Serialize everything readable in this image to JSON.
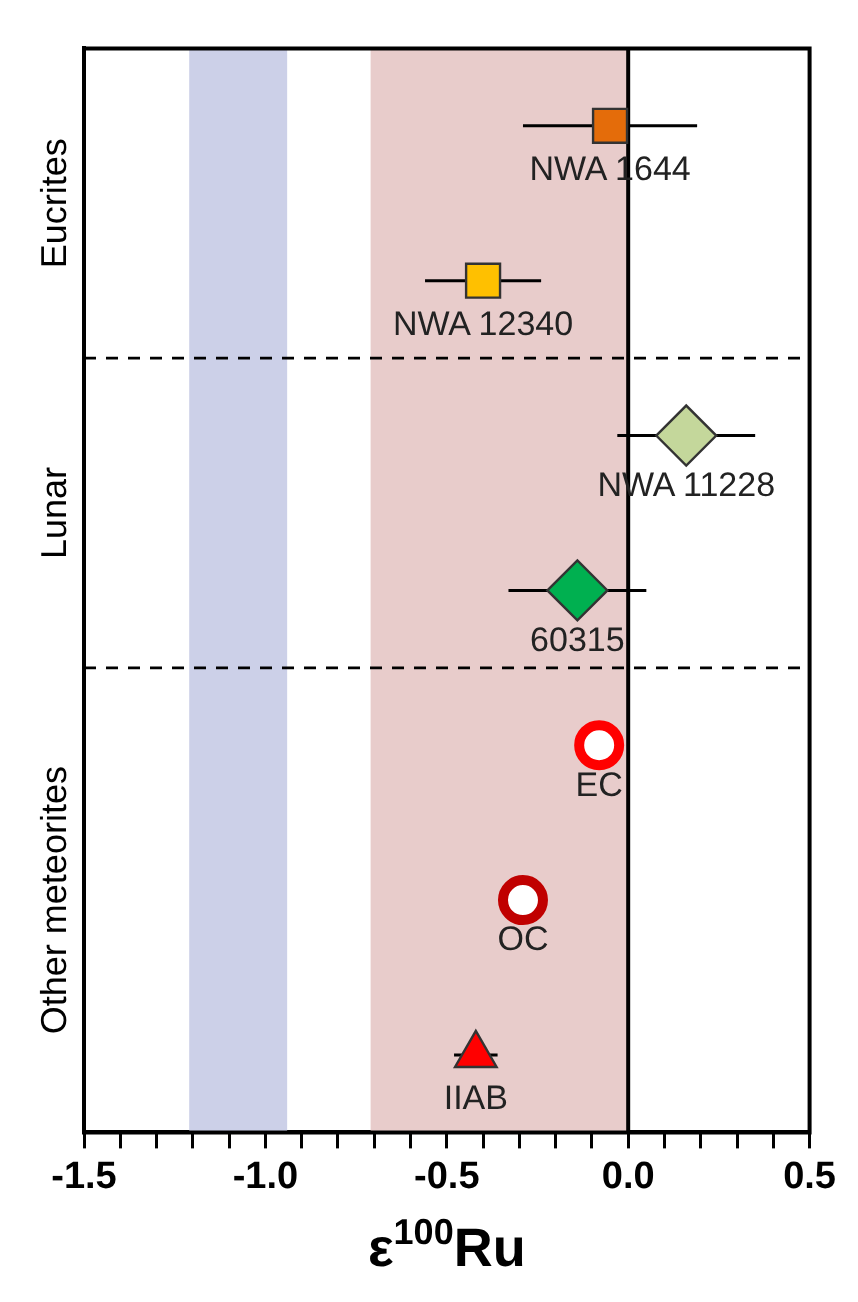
{
  "chart_data": {
    "type": "scatter",
    "orientation": "horizontal",
    "xlabel": "ε$^{100}$Ru",
    "categories": [
      null,
      null,
      null,
      null,
      null,
      null,
      null
    ],
    "xlim": [
      -1.5,
      0.5
    ],
    "xticks": [
      -1.5,
      {
        "value": -1.4,
        "label": null
      },
      {
        "value": -1.3,
        "label": null
      },
      {
        "value": -1.2,
        "label": null
      },
      {
        "value": -1.1,
        "label": null
      },
      {
        "value": -1,
        "label": "-1.0"
      },
      {
        "value": -0.9,
        "label": null
      },
      {
        "value": -0.8,
        "label": null
      },
      {
        "value": -0.7,
        "label": null
      },
      {
        "value": -0.6,
        "label": null
      },
      -0.5,
      {
        "value": -0.4,
        "label": null
      },
      {
        "value": -0.3,
        "label": null
      },
      {
        "value": -0.2,
        "label": null
      },
      {
        "value": -0.1,
        "label": null
      },
      {
        "value": 0,
        "label": "0.0"
      },
      {
        "value": 0.1,
        "label": null
      },
      {
        "value": 0.2,
        "label": null
      },
      {
        "value": 0.3,
        "label": null
      },
      {
        "value": 0.4,
        "label": null
      },
      0.5
    ],
    "annotations": [
      "Eucrites",
      "Lunar",
      "Other meteorites"
    ],
    "bands": [
      {
        "axis": "x",
        "from": -1.21,
        "to": -0.94,
        "color": "#ccd0e8"
      },
      {
        "axis": "x",
        "from": -0.71,
        "to": 0,
        "color": "#e8cccb"
      }
    ],
    "ref_lines": [
      {
        "axis": "x",
        "value": 0,
        "color": "#000000",
        "line_style": "solid"
      }
    ],
    "series": [
      {
        "name": "NWA 1644",
        "color": "#e46c0a",
        "marker": "square",
        "values": [
          -0.05,
          null,
          null,
          null,
          null,
          null,
          null
        ],
        "errors": [
          0.24,
          null,
          null,
          null,
          null,
          null,
          null
        ]
      },
      {
        "name": "NWA 12340",
        "color": "#ffc000",
        "marker": "square",
        "values": [
          null,
          -0.4,
          null,
          null,
          null,
          null,
          null
        ],
        "errors": [
          null,
          0.16,
          null,
          null,
          null,
          null,
          null
        ]
      },
      {
        "name": "NWA 11228",
        "color": "#c4d79b",
        "marker": "diamond",
        "values": [
          null,
          null,
          0.16,
          null,
          null,
          null,
          null
        ],
        "errors": [
          null,
          null,
          0.19,
          null,
          null,
          null,
          null
        ]
      },
      {
        "name": "60315",
        "color": "#00b050",
        "marker": "diamond",
        "values": [
          null,
          null,
          null,
          -0.14,
          null,
          null,
          null
        ],
        "errors": [
          null,
          null,
          null,
          0.19,
          null,
          null,
          null
        ]
      },
      {
        "name": "EC",
        "color": "#ff0000",
        "marker": "circle",
        "values": [
          null,
          null,
          null,
          null,
          -0.08,
          null,
          null
        ]
      },
      {
        "name": "OC",
        "color": "#c00000",
        "marker": "circle",
        "values": [
          null,
          null,
          null,
          null,
          null,
          -0.29,
          null
        ]
      },
      {
        "name": "IIAB",
        "color": "#ff0000",
        "marker": "triangle",
        "values": [
          null,
          null,
          null,
          null,
          null,
          null,
          -0.42
        ],
        "errors": [
          null,
          null,
          null,
          null,
          null,
          null,
          0.06
        ]
      }
    ]
  }
}
